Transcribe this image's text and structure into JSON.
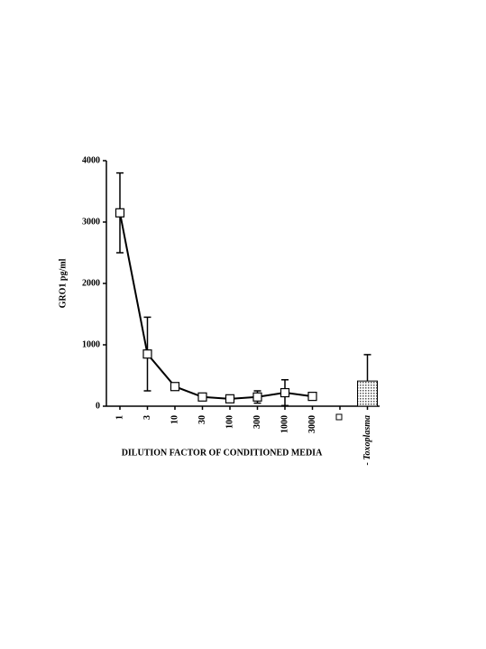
{
  "chart_data": {
    "type": "line",
    "y_label": "GRO1 pg/ml",
    "x_label": "DILUTION FACTOR OF CONDITIONED MEDIA",
    "categories": [
      "1",
      "3",
      "10",
      "30",
      "100",
      "300",
      "1000",
      "3000",
      null,
      "- Toxoplasma"
    ],
    "ylim": [
      0,
      4000
    ],
    "yticks": [
      0,
      1000,
      2000,
      3000,
      4000
    ],
    "series": [
      {
        "type": "line",
        "color": "#000000",
        "values": [
          3150,
          850,
          320,
          150,
          120,
          150,
          220,
          160,
          null,
          null
        ],
        "errors": [
          650,
          600,
          30,
          20,
          20,
          100,
          210,
          30,
          null,
          null
        ]
      },
      {
        "type": "bar",
        "color": "#b8b8b8",
        "values": [
          null,
          null,
          null,
          null,
          null,
          null,
          null,
          null,
          null,
          410
        ],
        "errors": [
          null,
          null,
          null,
          null,
          null,
          null,
          null,
          null,
          null,
          430
        ]
      }
    ]
  }
}
